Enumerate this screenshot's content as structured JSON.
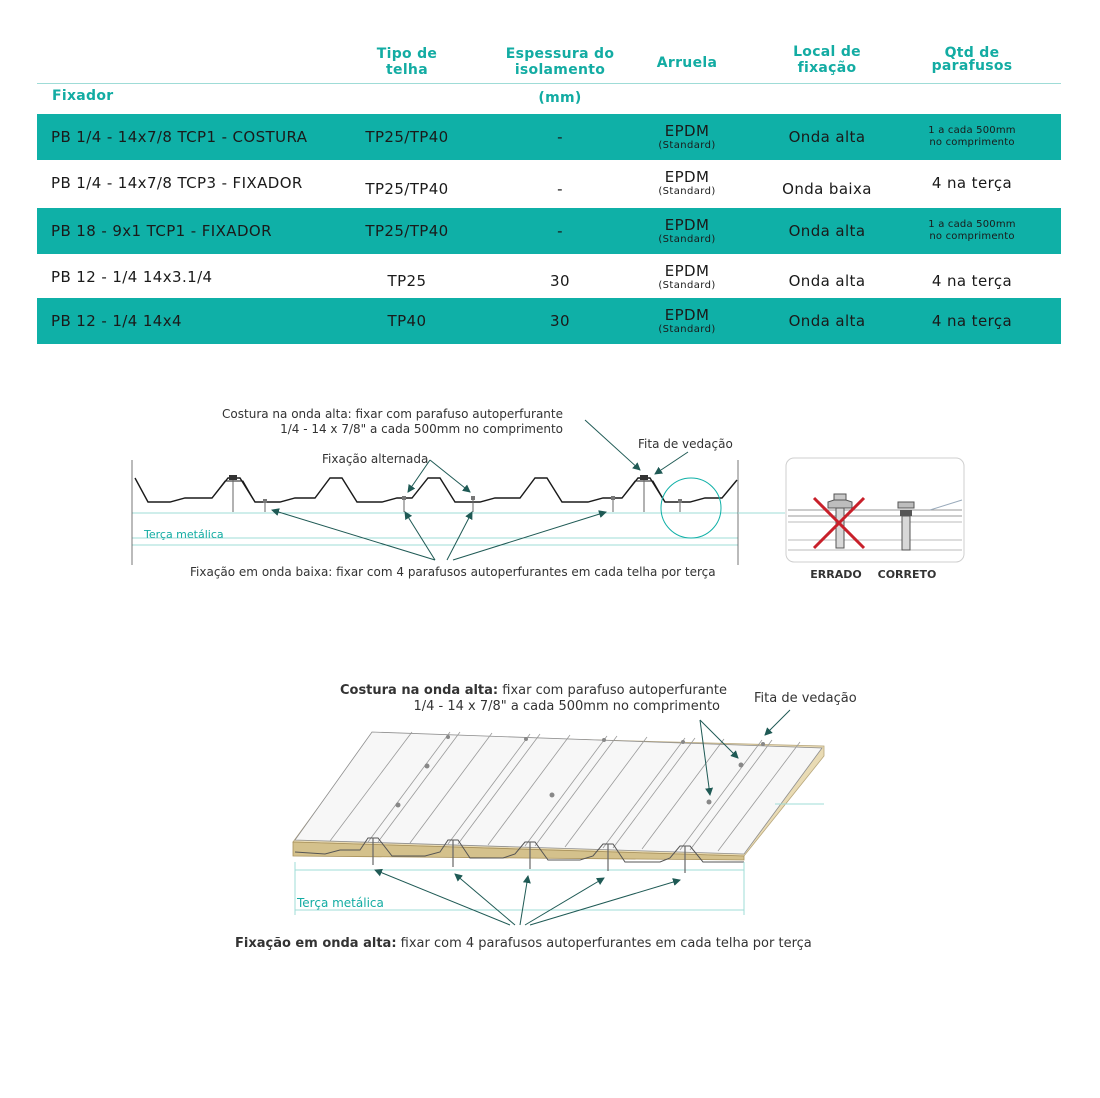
{
  "table": {
    "headers": {
      "fixador": "Fixador",
      "tipo_l1": "Tipo de",
      "tipo_l2": "telha",
      "esp_l1": "Espessura do",
      "esp_l2": "isolamento",
      "esp_l3": "(mm)",
      "arruela": "Arruela",
      "local_l1": "Local de",
      "local_l2": "fixação",
      "qtd_l1": "Qtd de",
      "qtd_l2": "parafusos"
    },
    "rows": [
      {
        "fixador": "PB 1/4 - 14x7/8 TCP1 - COSTURA",
        "tipo": "TP25/TP40",
        "espessura": "-",
        "arruela": "EPDM",
        "arruela_sub": "(Standard)",
        "local": "Onda alta",
        "qtd_l1": "1 a cada 500mm",
        "qtd_l2": "no comprimento"
      },
      {
        "fixador": "PB 1/4 - 14x7/8 TCP3 - FIXADOR",
        "tipo": "TP25/TP40",
        "espessura": "-",
        "arruela": "EPDM",
        "arruela_sub": "(Standard)",
        "local": "Onda baixa",
        "qtd_l1": "4 na terça",
        "qtd_l2": ""
      },
      {
        "fixador": "PB 18 - 9x1 TCP1 - FIXADOR",
        "tipo": "TP25/TP40",
        "espessura": "-",
        "arruela": "EPDM",
        "arruela_sub": "(Standard)",
        "local": "Onda alta",
        "qtd_l1": "1 a cada 500mm",
        "qtd_l2": "no comprimento"
      },
      {
        "fixador": "PB 12 - 1/4 14x3.1/4",
        "tipo": "TP25",
        "espessura": "30",
        "arruela": "EPDM",
        "arruela_sub": "(Standard)",
        "local": "Onda alta",
        "qtd_l1": "4 na terça",
        "qtd_l2": ""
      },
      {
        "fixador": "PB 12 - 1/4 14x4",
        "tipo": "TP40",
        "espessura": "30",
        "arruela": "EPDM",
        "arruela_sub": "(Standard)",
        "local": "Onda alta",
        "qtd_l1": "4 na terça",
        "qtd_l2": ""
      }
    ]
  },
  "diagram1": {
    "costura_l1": "Costura na onda alta: fixar com parafuso autoperfurante",
    "costura_l2": "1/4 - 14 x 7/8\" a cada 500mm no comprimento",
    "fita": "Fita de vedação",
    "alternada": "Fixação alternada",
    "terca": "Terça metálica",
    "baixa": "Fixação em onda baixa: fixar com 4 parafusos autoperfurantes em cada telha por terça",
    "errado": "ERRADO",
    "correto": "CORRETO"
  },
  "diagram2": {
    "costura_bold": "Costura na onda alta:",
    "costura_rest": " fixar com parafuso autoperfurante",
    "costura_l2": "1/4 - 14 x 7/8\" a cada 500mm no comprimento",
    "fita": "Fita de vedação",
    "terca": "Terça metálica",
    "alta_bold": "Fixação em onda alta:",
    "alta_rest": " fixar com 4 parafusos autoperfurantes em cada telha por terça"
  },
  "colors": {
    "teal": "#0fb0a7",
    "dark_arrow": "#1f5a55",
    "wrong_x": "#c8202a"
  }
}
